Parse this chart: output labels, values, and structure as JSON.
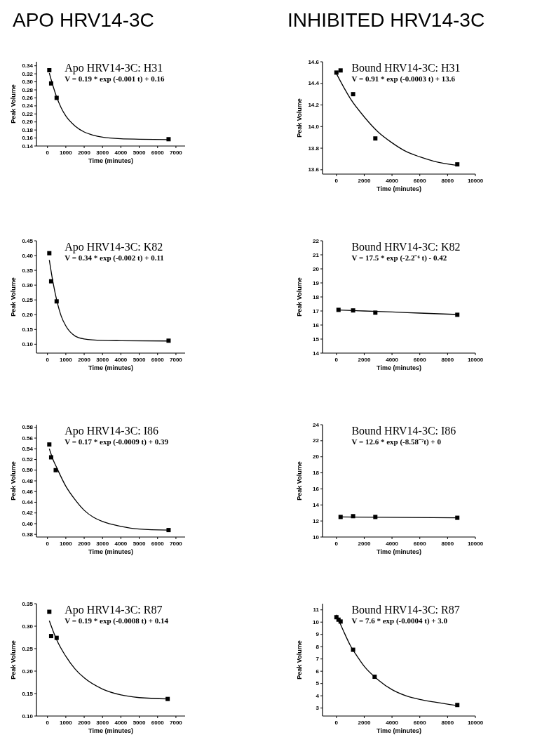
{
  "chart_data": [
    {
      "type": "scatter",
      "title": "APO HRV14-3C",
      "subtitle": "Apo HRV14-3C: H31",
      "annotations": [
        "V = 0.19 * exp (-0.001 t) + 0.16"
      ],
      "xlabel": "Time (minutes)",
      "ylabel": "Peak Volume",
      "grid": false,
      "xlim": [
        -600,
        7500
      ],
      "xticks": [
        0,
        1000,
        2000,
        3000,
        4000,
        5000,
        6000,
        7000
      ],
      "ylim": [
        0.14,
        0.35
      ],
      "yticks": [
        {
          "value": 0.14,
          "label": "0.14"
        },
        {
          "value": 0.16,
          "label": "0.16"
        },
        {
          "value": 0.18,
          "label": "0.18"
        },
        {
          "value": 0.2,
          "label": "0.20"
        },
        {
          "value": 0.22,
          "label": "0.22"
        },
        {
          "value": 0.24,
          "label": "0.24"
        },
        {
          "value": 0.26,
          "label": "0.26"
        },
        {
          "value": 0.28,
          "label": "0.28"
        },
        {
          "value": 0.3,
          "label": "0.30"
        },
        {
          "value": 0.32,
          "label": "0.32"
        },
        {
          "value": 0.34,
          "label": "0.34"
        }
      ],
      "series": [
        {
          "type": "scatter",
          "marker": "square",
          "color": "#000000",
          "x": [
            100,
            200,
            500,
            6600
          ],
          "values": [
            0.329,
            0.296,
            0.26,
            0.157
          ]
        },
        {
          "type": "line",
          "color": "#000000",
          "x": [
            100,
            300,
            500,
            750,
            1000,
            1500,
            2000,
            2500,
            3000,
            4000,
            5000,
            6600
          ],
          "values": [
            0.322,
            0.29,
            0.262,
            0.235,
            0.215,
            0.19,
            0.175,
            0.167,
            0.162,
            0.158,
            0.157,
            0.156
          ]
        }
      ]
    },
    {
      "type": "scatter",
      "title": "INHIBITED HRV14-3C",
      "subtitle": "Bound HRV14-3C: H31",
      "annotations": [
        "V = 0.91 * exp (-0.0003 t) + 13.6"
      ],
      "xlabel": "Time (minutes)",
      "ylabel": "Peak Volume",
      "grid": false,
      "xlim": [
        -1000,
        10000
      ],
      "xticks": [
        0,
        2000,
        4000,
        6000,
        8000,
        10000
      ],
      "ylim": [
        13.56,
        14.6
      ],
      "yticks": [
        {
          "value": 13.6,
          "label": "13.6"
        },
        {
          "value": 13.8,
          "label": "13.8"
        },
        {
          "value": 14,
          "label": "14.0"
        },
        {
          "value": 14.2,
          "label": "14.2"
        },
        {
          "value": 14.4,
          "label": "14.4"
        },
        {
          "value": 14.6,
          "label": "14.6"
        }
      ],
      "series": [
        {
          "type": "scatter",
          "marker": "square",
          "color": "#000000",
          "x": [
            0,
            300,
            1200,
            2800,
            8700
          ],
          "values": [
            14.5,
            14.52,
            14.3,
            13.89,
            13.65
          ]
        },
        {
          "type": "line",
          "color": "#000000",
          "x": [
            0,
            500,
            1000,
            2000,
            3000,
            4000,
            5000,
            6000,
            7000,
            8700
          ],
          "values": [
            14.49,
            14.37,
            14.26,
            14.09,
            13.95,
            13.85,
            13.77,
            13.72,
            13.68,
            13.64
          ]
        }
      ]
    },
    {
      "type": "scatter",
      "subtitle": "Apo HRV14-3C: K82",
      "annotations": [
        "V = 0.34 * exp (-0.002 t) + 0.11"
      ],
      "xlabel": "Time (minutes)",
      "ylabel": "Peak Volume",
      "grid": false,
      "xlim": [
        -600,
        7500
      ],
      "xticks": [
        0,
        1000,
        2000,
        3000,
        4000,
        5000,
        6000,
        7000
      ],
      "ylim": [
        0.07,
        0.45
      ],
      "yticks": [
        {
          "value": 0.1,
          "label": "0.10"
        },
        {
          "value": 0.15,
          "label": "0.15"
        },
        {
          "value": 0.2,
          "label": "0.20"
        },
        {
          "value": 0.25,
          "label": "0.25"
        },
        {
          "value": 0.3,
          "label": "0.30"
        },
        {
          "value": 0.35,
          "label": "0.35"
        },
        {
          "value": 0.4,
          "label": "0.40"
        },
        {
          "value": 0.45,
          "label": "0.45"
        }
      ],
      "series": [
        {
          "type": "scatter",
          "marker": "square",
          "color": "#000000",
          "x": [
            100,
            200,
            500,
            6600
          ],
          "values": [
            0.408,
            0.313,
            0.245,
            0.112
          ]
        },
        {
          "type": "line",
          "color": "#000000",
          "x": [
            100,
            300,
            500,
            750,
            1000,
            1500,
            2000,
            3000,
            4000,
            6600
          ],
          "values": [
            0.385,
            0.31,
            0.25,
            0.195,
            0.162,
            0.128,
            0.118,
            0.113,
            0.112,
            0.111
          ]
        }
      ]
    },
    {
      "type": "scatter",
      "subtitle": "Bound HRV14-3C: K82",
      "annotations": [
        "V = 17.5 * exp (-2.2⁻⁶ t) - 0.42"
      ],
      "xlabel": "Time (minutes)",
      "ylabel": "Peak Volume",
      "grid": false,
      "xlim": [
        -1000,
        10000
      ],
      "xticks": [
        0,
        2000,
        4000,
        6000,
        8000,
        10000
      ],
      "ylim": [
        14,
        22
      ],
      "yticks": [
        14,
        15,
        16,
        17,
        18,
        19,
        20,
        21,
        22
      ],
      "series": [
        {
          "type": "scatter",
          "marker": "square",
          "color": "#000000",
          "x": [
            150,
            1200,
            2800,
            8700
          ],
          "values": [
            17.08,
            17.04,
            16.88,
            16.73
          ]
        },
        {
          "type": "line",
          "color": "#000000",
          "x": [
            150,
            2000,
            4000,
            6000,
            8700
          ],
          "values": [
            17.07,
            17.0,
            16.93,
            16.85,
            16.75
          ]
        }
      ]
    },
    {
      "type": "scatter",
      "subtitle": "Apo HRV14-3C: I86",
      "annotations": [
        "V = 0.17 * exp (-0.0009 t) + 0.39"
      ],
      "xlabel": "Time (minutes)",
      "ylabel": "Peak Volume",
      "grid": false,
      "xlim": [
        -600,
        7500
      ],
      "xticks": [
        0,
        1000,
        2000,
        3000,
        4000,
        5000,
        6000,
        7000
      ],
      "ylim": [
        0.375,
        0.585
      ],
      "yticks": [
        {
          "value": 0.38,
          "label": "0.38"
        },
        {
          "value": 0.4,
          "label": "0.40"
        },
        {
          "value": 0.42,
          "label": "0.42"
        },
        {
          "value": 0.44,
          "label": "0.44"
        },
        {
          "value": 0.46,
          "label": "0.46"
        },
        {
          "value": 0.48,
          "label": "0.48"
        },
        {
          "value": 0.5,
          "label": "0.50"
        },
        {
          "value": 0.52,
          "label": "0.52"
        },
        {
          "value": 0.54,
          "label": "0.54"
        },
        {
          "value": 0.56,
          "label": "0.56"
        },
        {
          "value": 0.58,
          "label": "0.58"
        }
      ],
      "series": [
        {
          "type": "scatter",
          "marker": "square",
          "color": "#000000",
          "x": [
            100,
            200,
            450,
            6600
          ],
          "values": [
            0.548,
            0.524,
            0.5,
            0.388
          ]
        },
        {
          "type": "line",
          "color": "#000000",
          "x": [
            100,
            300,
            500,
            1000,
            1500,
            2000,
            2500,
            3000,
            4000,
            5000,
            6600
          ],
          "values": [
            0.54,
            0.52,
            0.505,
            0.47,
            0.445,
            0.425,
            0.412,
            0.404,
            0.395,
            0.39,
            0.388
          ]
        }
      ]
    },
    {
      "type": "scatter",
      "subtitle": "Bound HRV14-3C: I86",
      "annotations": [
        "V = 12.6 * exp (-8.58⁻⁷t) + 0"
      ],
      "xlabel": "Time (minutes)",
      "ylabel": "Peak Volume",
      "grid": false,
      "xlim": [
        -1000,
        10000
      ],
      "xticks": [
        0,
        2000,
        4000,
        6000,
        8000,
        10000
      ],
      "ylim": [
        10,
        24
      ],
      "yticks": [
        10,
        12,
        14,
        16,
        18,
        20,
        22,
        24
      ],
      "series": [
        {
          "type": "scatter",
          "marker": "square",
          "color": "#000000",
          "x": [
            300,
            1200,
            2800,
            8700
          ],
          "values": [
            12.5,
            12.6,
            12.5,
            12.4
          ]
        },
        {
          "type": "line",
          "color": "#000000",
          "x": [
            300,
            8700
          ],
          "values": [
            12.5,
            12.4
          ]
        }
      ]
    },
    {
      "type": "scatter",
      "subtitle": "Apo HRV14-3C: R87",
      "annotations": [
        "V = 0.19 * exp (-0.0008 t) + 0.14"
      ],
      "xlabel": "Time (minutes)",
      "ylabel": "Peak Volume",
      "grid": false,
      "xlim": [
        -600,
        7500
      ],
      "xticks": [
        0,
        1000,
        2000,
        3000,
        4000,
        5000,
        6000,
        7000
      ],
      "ylim": [
        0.1,
        0.35
      ],
      "yticks": [
        {
          "value": 0.1,
          "label": "0.10"
        },
        {
          "value": 0.15,
          "label": "0.15"
        },
        {
          "value": 0.2,
          "label": "0.20"
        },
        {
          "value": 0.25,
          "label": "0.25"
        },
        {
          "value": 0.3,
          "label": "0.30"
        },
        {
          "value": 0.35,
          "label": "0.35"
        }
      ],
      "series": [
        {
          "type": "scatter",
          "marker": "square",
          "color": "#000000",
          "x": [
            100,
            200,
            500,
            6550
          ],
          "values": [
            0.332,
            0.278,
            0.274,
            0.138
          ]
        },
        {
          "type": "line",
          "color": "#000000",
          "x": [
            100,
            300,
            500,
            1000,
            1500,
            2000,
            3000,
            4000,
            5000,
            6550
          ],
          "values": [
            0.312,
            0.29,
            0.27,
            0.233,
            0.205,
            0.185,
            0.16,
            0.147,
            0.141,
            0.138
          ]
        }
      ]
    },
    {
      "type": "scatter",
      "subtitle": "Bound HRV14-3C: R87",
      "annotations": [
        "V = 7.6 * exp (-0.0004 t) + 3.0"
      ],
      "xlabel": "Time (minutes)",
      "ylabel": "Peak Volume",
      "grid": false,
      "xlim": [
        -1000,
        10000
      ],
      "xticks": [
        0,
        2000,
        4000,
        6000,
        8000,
        10000
      ],
      "ylim": [
        2.35,
        11.5
      ],
      "yticks": [
        3,
        4,
        5,
        6,
        7,
        8,
        9,
        10,
        11
      ],
      "series": [
        {
          "type": "scatter",
          "marker": "square",
          "color": "#000000",
          "x": [
            0,
            150,
            300,
            1200,
            2750,
            8700
          ],
          "values": [
            10.4,
            10.2,
            10.05,
            7.75,
            5.55,
            3.25
          ]
        },
        {
          "type": "line",
          "color": "#000000",
          "x": [
            0,
            500,
            1000,
            1500,
            2000,
            3000,
            4000,
            5000,
            6000,
            7000,
            8700
          ],
          "values": [
            10.6,
            9.3,
            8.1,
            7.2,
            6.4,
            5.3,
            4.5,
            4.0,
            3.7,
            3.5,
            3.2
          ]
        }
      ]
    }
  ]
}
